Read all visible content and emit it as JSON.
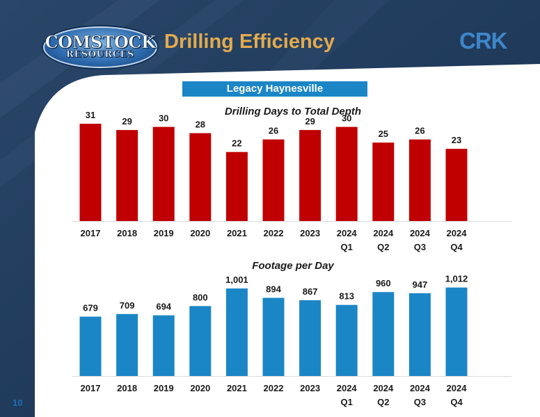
{
  "header": {
    "logo_line1": "COMSTOCK",
    "logo_line2": "RESOURCES",
    "title": "Drilling Efficiency",
    "brand": "CRK"
  },
  "subtitle": "Legacy Haynesville",
  "page_number": "10",
  "colors": {
    "accent_title": "#e3aa4d",
    "brand_blue": "#3f86c9",
    "pill_blue": "#1b86c6",
    "bar_red": "#c00000",
    "bar_blue": "#1b86c6",
    "header_navy": "#1d3a5c"
  },
  "chart_data": [
    {
      "type": "bar",
      "title": "Drilling Days to Total Depth",
      "categories": [
        "2017",
        "2018",
        "2019",
        "2020",
        "2021",
        "2022",
        "2023",
        "2024\nQ1",
        "2024\nQ2",
        "2024\nQ3",
        "2024\nQ4"
      ],
      "values": [
        31,
        29,
        30,
        28,
        22,
        26,
        29,
        30,
        25,
        26,
        23
      ],
      "value_labels": [
        "31",
        "29",
        "30",
        "28",
        "22",
        "26",
        "29",
        "30",
        "25",
        "26",
        "23"
      ],
      "color": "#c00000",
      "ylim": [
        0,
        35
      ],
      "grid": false,
      "xlabel": "",
      "ylabel": ""
    },
    {
      "type": "bar",
      "title": "Footage per Day",
      "categories": [
        "2017",
        "2018",
        "2019",
        "2020",
        "2021",
        "2022",
        "2023",
        "2024\nQ1",
        "2024\nQ2",
        "2024\nQ3",
        "2024\nQ4"
      ],
      "values": [
        679,
        709,
        694,
        800,
        1001,
        894,
        867,
        813,
        960,
        947,
        1012
      ],
      "value_labels": [
        "679",
        "709",
        "694",
        "800",
        "1,001",
        "894",
        "867",
        "813",
        "960",
        "947",
        "1,012"
      ],
      "color": "#1b86c6",
      "ylim": [
        0,
        1240
      ],
      "grid": false,
      "xlabel": "",
      "ylabel": ""
    }
  ]
}
